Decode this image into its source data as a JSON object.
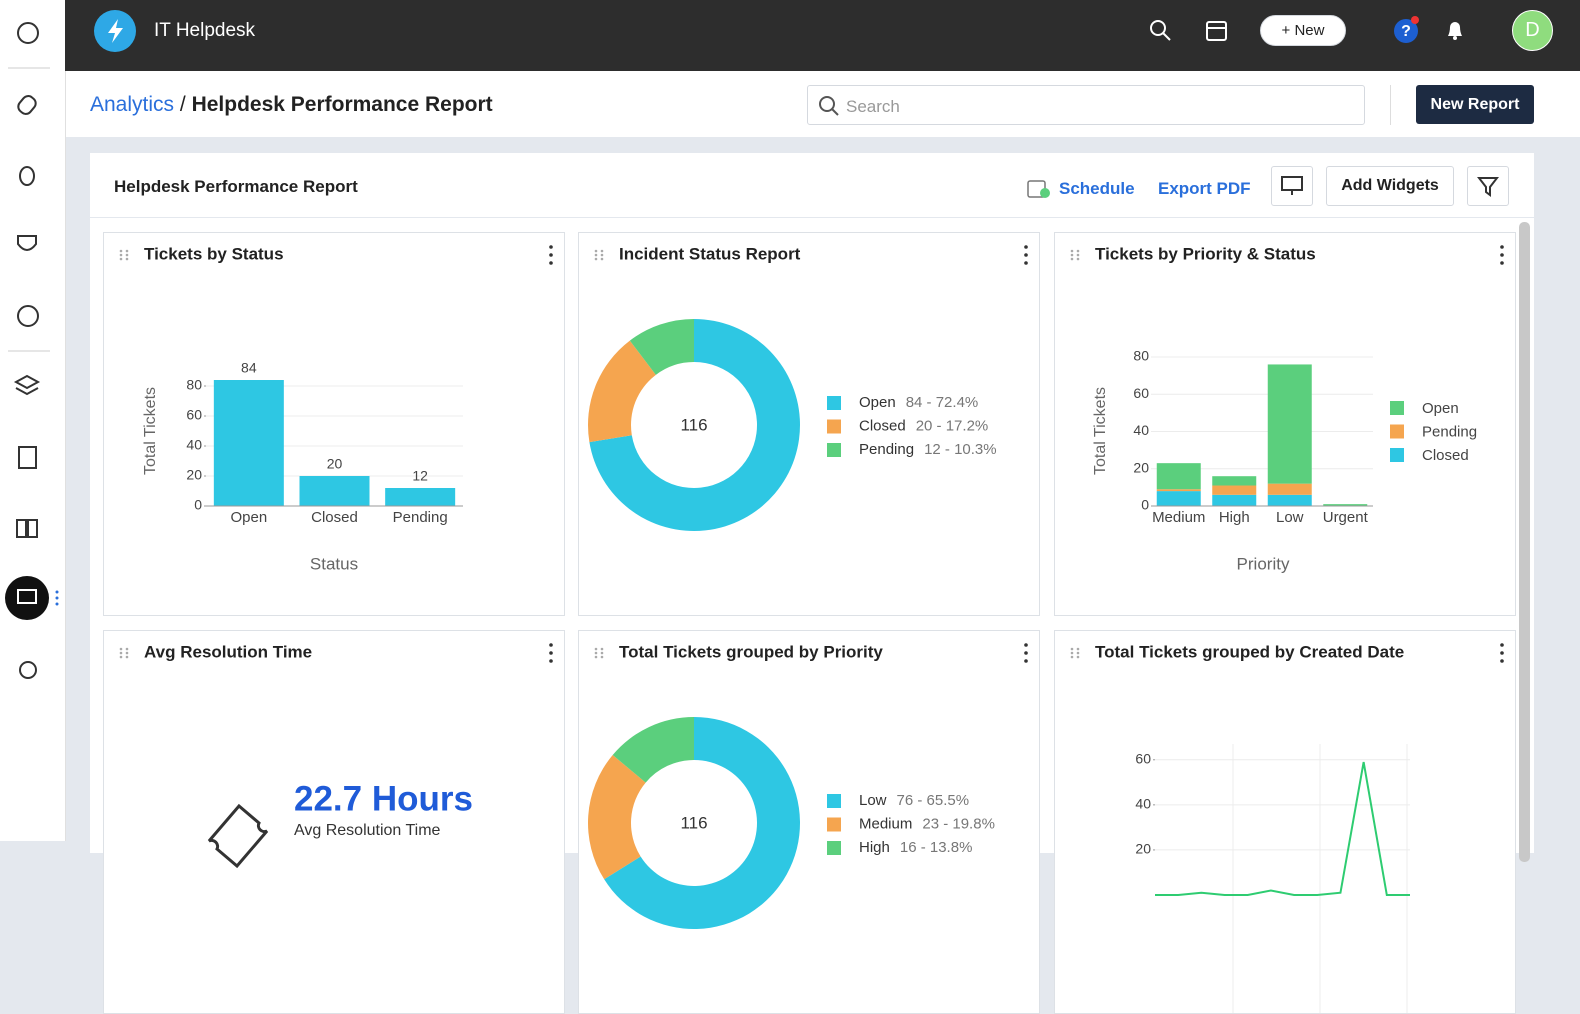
{
  "app": {
    "name": "IT Helpdesk",
    "new_button": "+ New",
    "avatar": "D"
  },
  "breadcrumb": {
    "parent": "Analytics",
    "separator": "/",
    "current": "Helpdesk Performance Report"
  },
  "search_placeholder": "Search",
  "new_report": "New Report",
  "report": {
    "title": "Helpdesk Performance Report",
    "schedule": "Schedule",
    "export": "Export PDF",
    "add_widgets": "Add Widgets"
  },
  "chart_data": [
    {
      "type": "bar",
      "title": "Tickets by Status",
      "categories": [
        "Open",
        "Closed",
        "Pending"
      ],
      "values": [
        84,
        20,
        12
      ],
      "color": "#2ec7e3",
      "ylim": [
        0,
        84
      ],
      "yticks": [
        0,
        20,
        40,
        60,
        80
      ],
      "x_label": "Status",
      "y_label": "Total Tickets",
      "grid": true
    },
    {
      "type": "donut",
      "title": "Incident Status Report",
      "total": 116,
      "categories": [
        "Open",
        "Closed",
        "Pending"
      ],
      "values": [
        84,
        20,
        12
      ],
      "value_labels": [
        "84 - 72.4%",
        "20 - 17.2%",
        "12 - 10.3%"
      ],
      "colors": [
        "#2ec7e3",
        "#f5a54f",
        "#5bcf7d"
      ]
    },
    {
      "type": "stacked_bar",
      "title": "Tickets by Priority & Status",
      "categories": [
        "Medium",
        "High",
        "Low",
        "Urgent"
      ],
      "series": [
        {
          "name": "Open",
          "color": "#5bcf7d",
          "values": [
            14,
            5,
            64,
            1
          ]
        },
        {
          "name": "Pending",
          "color": "#f5a54f",
          "values": [
            1,
            5,
            6,
            0
          ]
        },
        {
          "name": "Closed",
          "color": "#2ec7e3",
          "values": [
            8,
            6,
            6,
            0
          ]
        }
      ],
      "ylim": [
        0,
        80
      ],
      "yticks": [
        0,
        20,
        40,
        60,
        80
      ],
      "x_label": "Priority",
      "y_label": "Total Tickets",
      "grid": true
    },
    {
      "type": "metric",
      "title": "Avg Resolution Time",
      "value_label": "22.7 Hours",
      "caption": "Avg Resolution Time"
    },
    {
      "type": "donut",
      "title": "Total Tickets grouped by Priority",
      "total": 116,
      "categories": [
        "Low",
        "Medium",
        "High"
      ],
      "values": [
        76,
        23,
        16
      ],
      "value_labels": [
        "76 - 65.5%",
        "23 - 19.8%",
        "16 - 13.8%"
      ],
      "colors": [
        "#2ec7e3",
        "#f5a54f",
        "#5bcf7d"
      ]
    },
    {
      "type": "line",
      "title": "Total Tickets grouped by Created Date",
      "values": [
        0,
        0,
        1,
        0,
        0,
        2,
        0,
        0,
        1,
        59,
        0,
        0
      ],
      "color": "#2ecc71",
      "ylim": [
        0,
        67
      ],
      "yticks": [
        20,
        40,
        60
      ],
      "grid": true
    }
  ]
}
